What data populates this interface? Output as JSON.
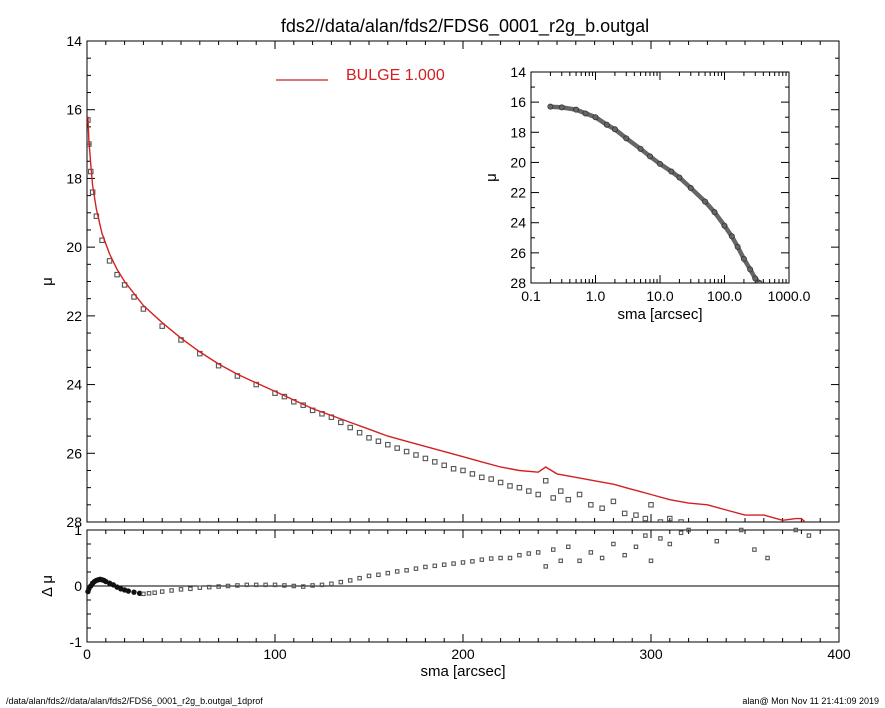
{
  "title": "fds2//data/alan/fds2/FDS6_0001_r2g_b.outgal",
  "footer_left": "/data/alan/fds2//data/alan/fds2/FDS6_0001_r2g_b.outgal_1dprof",
  "footer_right": "alan@  Mon Nov 11 21:41:09 2019",
  "colors": {
    "model": "#d42020",
    "data": "#555555",
    "axes": "#000000"
  },
  "chart_data": [
    {
      "id": "main-profile",
      "type": "scatter",
      "xlabel": "",
      "ylabel": "μ",
      "xlim": [
        0,
        400
      ],
      "ylim": [
        28,
        14
      ],
      "y_inverted": true,
      "x_ticks": [
        0,
        100,
        200,
        300,
        400
      ],
      "y_ticks": [
        14,
        16,
        18,
        20,
        22,
        24,
        26,
        28
      ],
      "legend": {
        "placement": "top-center",
        "entries": [
          {
            "label": "BULGE  1.000",
            "color": "#d42020"
          }
        ]
      },
      "series": [
        {
          "name": "BULGE  1.000",
          "kind": "line",
          "color": "#d42020",
          "x": [
            0.5,
            1,
            2,
            3,
            5,
            8,
            12,
            16,
            20,
            25,
            30,
            40,
            50,
            60,
            70,
            80,
            90,
            100,
            110,
            120,
            130,
            140,
            150,
            160,
            170,
            180,
            190,
            200,
            210,
            220,
            230,
            240,
            244,
            250,
            260,
            270,
            280,
            290,
            300,
            310,
            320,
            330,
            340,
            350,
            360,
            370,
            377,
            380,
            384
          ],
          "y": [
            16.2,
            16.9,
            17.6,
            18.2,
            18.9,
            19.6,
            20.2,
            20.65,
            21.0,
            21.35,
            21.7,
            22.2,
            22.65,
            23.05,
            23.4,
            23.7,
            23.95,
            24.2,
            24.45,
            24.7,
            24.9,
            25.1,
            25.3,
            25.5,
            25.65,
            25.8,
            25.95,
            26.1,
            26.25,
            26.4,
            26.5,
            26.55,
            26.4,
            26.6,
            26.7,
            26.8,
            26.9,
            27.05,
            27.2,
            27.35,
            27.45,
            27.5,
            27.65,
            27.8,
            27.8,
            27.95,
            27.9,
            27.9,
            28.1
          ]
        },
        {
          "name": "",
          "kind": "points",
          "color": "#555555",
          "x": [
            0.5,
            1,
            2,
            3,
            5,
            8,
            12,
            16,
            20,
            25,
            30,
            40,
            50,
            60,
            70,
            80,
            90,
            100,
            105,
            110,
            115,
            120,
            125,
            130,
            135,
            140,
            145,
            150,
            155,
            160,
            165,
            170,
            175,
            180,
            185,
            190,
            195,
            200,
            205,
            210,
            215,
            220,
            225,
            230,
            235,
            240,
            244,
            248,
            252,
            256,
            262,
            268,
            274,
            280,
            286,
            292,
            297,
            300,
            305,
            310,
            316
          ],
          "y": [
            16.3,
            17.0,
            17.8,
            18.4,
            19.1,
            19.8,
            20.4,
            20.8,
            21.1,
            21.45,
            21.8,
            22.3,
            22.7,
            23.1,
            23.45,
            23.75,
            24.0,
            24.25,
            24.35,
            24.5,
            24.6,
            24.75,
            24.85,
            24.95,
            25.1,
            25.25,
            25.4,
            25.55,
            25.65,
            25.75,
            25.85,
            25.95,
            26.05,
            26.15,
            26.25,
            26.35,
            26.45,
            26.5,
            26.6,
            26.7,
            26.75,
            26.85,
            26.95,
            27.0,
            27.1,
            27.2,
            26.8,
            27.3,
            27.1,
            27.35,
            27.2,
            27.5,
            27.6,
            27.4,
            27.75,
            27.8,
            27.9,
            27.5,
            28.0,
            27.9,
            28.0
          ]
        }
      ]
    },
    {
      "id": "residuals",
      "type": "scatter",
      "xlabel": "sma [arcsec]",
      "ylabel": "Δ μ",
      "xlim": [
        0,
        400
      ],
      "ylim": [
        -1,
        1
      ],
      "x_ticks": [
        0,
        100,
        200,
        300,
        400
      ],
      "y_ticks": [
        -1,
        0,
        1
      ],
      "series": [
        {
          "name": "",
          "kind": "points",
          "color": "#555555",
          "x": [
            0.5,
            1,
            2,
            3,
            4,
            5,
            6,
            7,
            8,
            9,
            10,
            12,
            14,
            16,
            18,
            20,
            22,
            25,
            28,
            30,
            33,
            36,
            40,
            45,
            50,
            55,
            60,
            65,
            70,
            75,
            80,
            85,
            90,
            95,
            100,
            105,
            110,
            115,
            120,
            125,
            130,
            135,
            140,
            145,
            150,
            155,
            160,
            165,
            170,
            175,
            180,
            185,
            190,
            195,
            200,
            205,
            210,
            215,
            220,
            225,
            230,
            235,
            240,
            244,
            248,
            252,
            256,
            262,
            268,
            274,
            280,
            286,
            292,
            297,
            300,
            305,
            310,
            316,
            320,
            335,
            348,
            355,
            362,
            377,
            384
          ],
          "y": [
            -0.1,
            -0.05,
            0.0,
            0.05,
            0.08,
            0.1,
            0.11,
            0.12,
            0.11,
            0.1,
            0.08,
            0.05,
            0.02,
            -0.02,
            -0.05,
            -0.07,
            -0.09,
            -0.11,
            -0.13,
            -0.14,
            -0.13,
            -0.12,
            -0.1,
            -0.08,
            -0.06,
            -0.05,
            -0.03,
            -0.02,
            -0.01,
            0.0,
            0.01,
            0.02,
            0.02,
            0.02,
            0.02,
            0.01,
            0.0,
            -0.01,
            0.01,
            0.02,
            0.04,
            0.07,
            0.1,
            0.14,
            0.18,
            0.2,
            0.23,
            0.26,
            0.28,
            0.31,
            0.34,
            0.36,
            0.38,
            0.4,
            0.42,
            0.44,
            0.47,
            0.49,
            0.5,
            0.5,
            0.55,
            0.58,
            0.6,
            0.35,
            0.65,
            0.45,
            0.7,
            0.45,
            0.6,
            0.5,
            0.75,
            0.55,
            0.7,
            0.9,
            0.45,
            0.85,
            0.75,
            0.95,
            1.0,
            0.8,
            1.0,
            0.65,
            0.5,
            1.0,
            0.9
          ]
        }
      ]
    },
    {
      "id": "inset-log-profile",
      "type": "scatter",
      "xlabel": "sma [arcsec]",
      "ylabel": "μ",
      "x_scale": "log",
      "xlim": [
        0.1,
        1000.0
      ],
      "ylim": [
        28,
        14
      ],
      "y_inverted": true,
      "x_ticks": [
        "0.1",
        "1.0",
        "10.0",
        "100.0",
        "1000.0"
      ],
      "y_ticks": [
        14,
        16,
        18,
        20,
        22,
        24,
        26,
        28
      ],
      "series": [
        {
          "name": "",
          "kind": "points",
          "color": "#555555",
          "x": [
            0.2,
            0.3,
            0.5,
            0.7,
            1.0,
            1.5,
            2,
            3,
            5,
            7,
            10,
            15,
            20,
            30,
            50,
            70,
            100,
            130,
            160,
            200,
            250,
            300,
            350
          ],
          "y": [
            16.3,
            16.35,
            16.5,
            16.75,
            17.0,
            17.5,
            17.8,
            18.4,
            19.1,
            19.6,
            20.1,
            20.6,
            21.0,
            21.7,
            22.6,
            23.3,
            24.2,
            24.9,
            25.6,
            26.4,
            27.1,
            27.7,
            28.0
          ]
        }
      ]
    }
  ]
}
